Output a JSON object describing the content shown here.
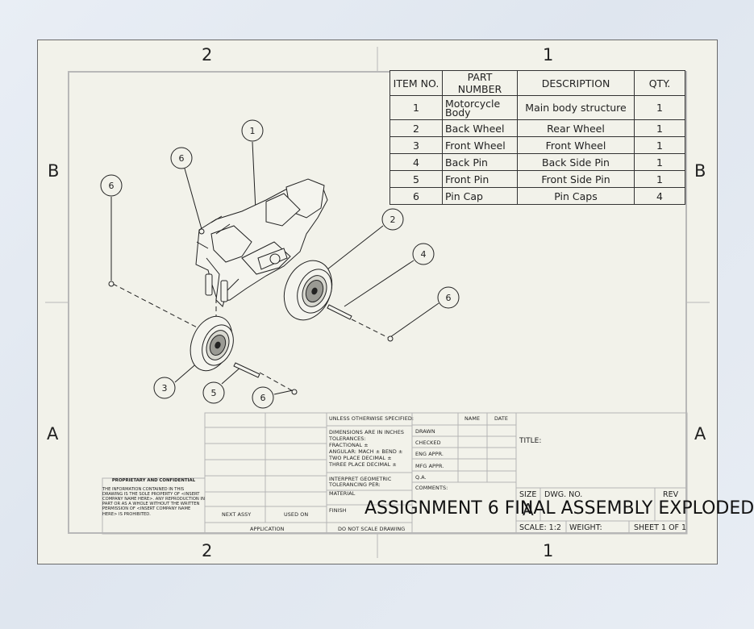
{
  "zones": {
    "top": [
      "2",
      "1"
    ],
    "bottom": [
      "2",
      "1"
    ],
    "left": [
      "B",
      "A"
    ],
    "right": [
      "B",
      "A"
    ]
  },
  "bom": {
    "headers": [
      "ITEM NO.",
      "PART NUMBER",
      "DESCRIPTION",
      "QTY."
    ],
    "rows": [
      {
        "item": "1",
        "part": "Motorcycle Body",
        "desc": "Main body structure",
        "qty": "1"
      },
      {
        "item": "2",
        "part": "Back Wheel",
        "desc": "Rear Wheel",
        "qty": "1"
      },
      {
        "item": "3",
        "part": "Front Wheel",
        "desc": "Front Wheel",
        "qty": "1"
      },
      {
        "item": "4",
        "part": "Back Pin",
        "desc": "Back Side Pin",
        "qty": "1"
      },
      {
        "item": "5",
        "part": "Front Pin",
        "desc": "Front Side Pin",
        "qty": "1"
      },
      {
        "item": "6",
        "part": "Pin Cap",
        "desc": "Pin Caps",
        "qty": "4"
      }
    ]
  },
  "balloons": [
    "1",
    "6",
    "6",
    "2",
    "4",
    "6",
    "3",
    "5",
    "6"
  ],
  "title_block": {
    "unless": "UNLESS OTHERWISE SPECIFIED:",
    "name": "NAME",
    "date": "DATE",
    "drawn": "DRAWN",
    "checked": "CHECKED",
    "eng_appr": "ENG APPR.",
    "mfg_appr": "MFG APPR.",
    "qa": "Q.A.",
    "comments": "COMMENTS:",
    "dims_1": "DIMENSIONS ARE IN INCHES",
    "dims_2": "TOLERANCES:",
    "dims_3": "FRACTIONAL ±",
    "dims_4": "ANGULAR: MACH ±   BEND ±",
    "dims_5": "TWO PLACE DECIMAL    ±",
    "dims_6": "THREE PLACE DECIMAL   ±",
    "interpret_1": "INTERPRET GEOMETRIC",
    "interpret_2": "TOLERANCING PER:",
    "material": "MATERIAL",
    "finish": "FINISH",
    "next_assy": "NEXT ASSY",
    "used_on": "USED ON",
    "application": "APPLICATION",
    "do_not_scale": "DO NOT SCALE DRAWING",
    "title_label": "TITLE:",
    "size": "SIZE",
    "size_val": "A",
    "dwg_no": "DWG.  NO.",
    "rev": "REV",
    "scale": "SCALE: 1:2",
    "weight": "WEIGHT:",
    "sheet": "SHEET 1 OF 1",
    "drawing_title": "ASSIGNMENT 6 FINAL ASSEMBLY EXPLODED"
  },
  "proprietary": {
    "heading": "PROPRIETARY AND CONFIDENTIAL",
    "body": "THE INFORMATION CONTAINED IN THIS DRAWING IS THE SOLE PROPERTY OF <INSERT COMPANY NAME HERE>.  ANY REPRODUCTION IN PART OR AS A WHOLE WITHOUT THE WRITTEN PERMISSION OF <INSERT COMPANY NAME HERE> IS PROHIBITED."
  }
}
